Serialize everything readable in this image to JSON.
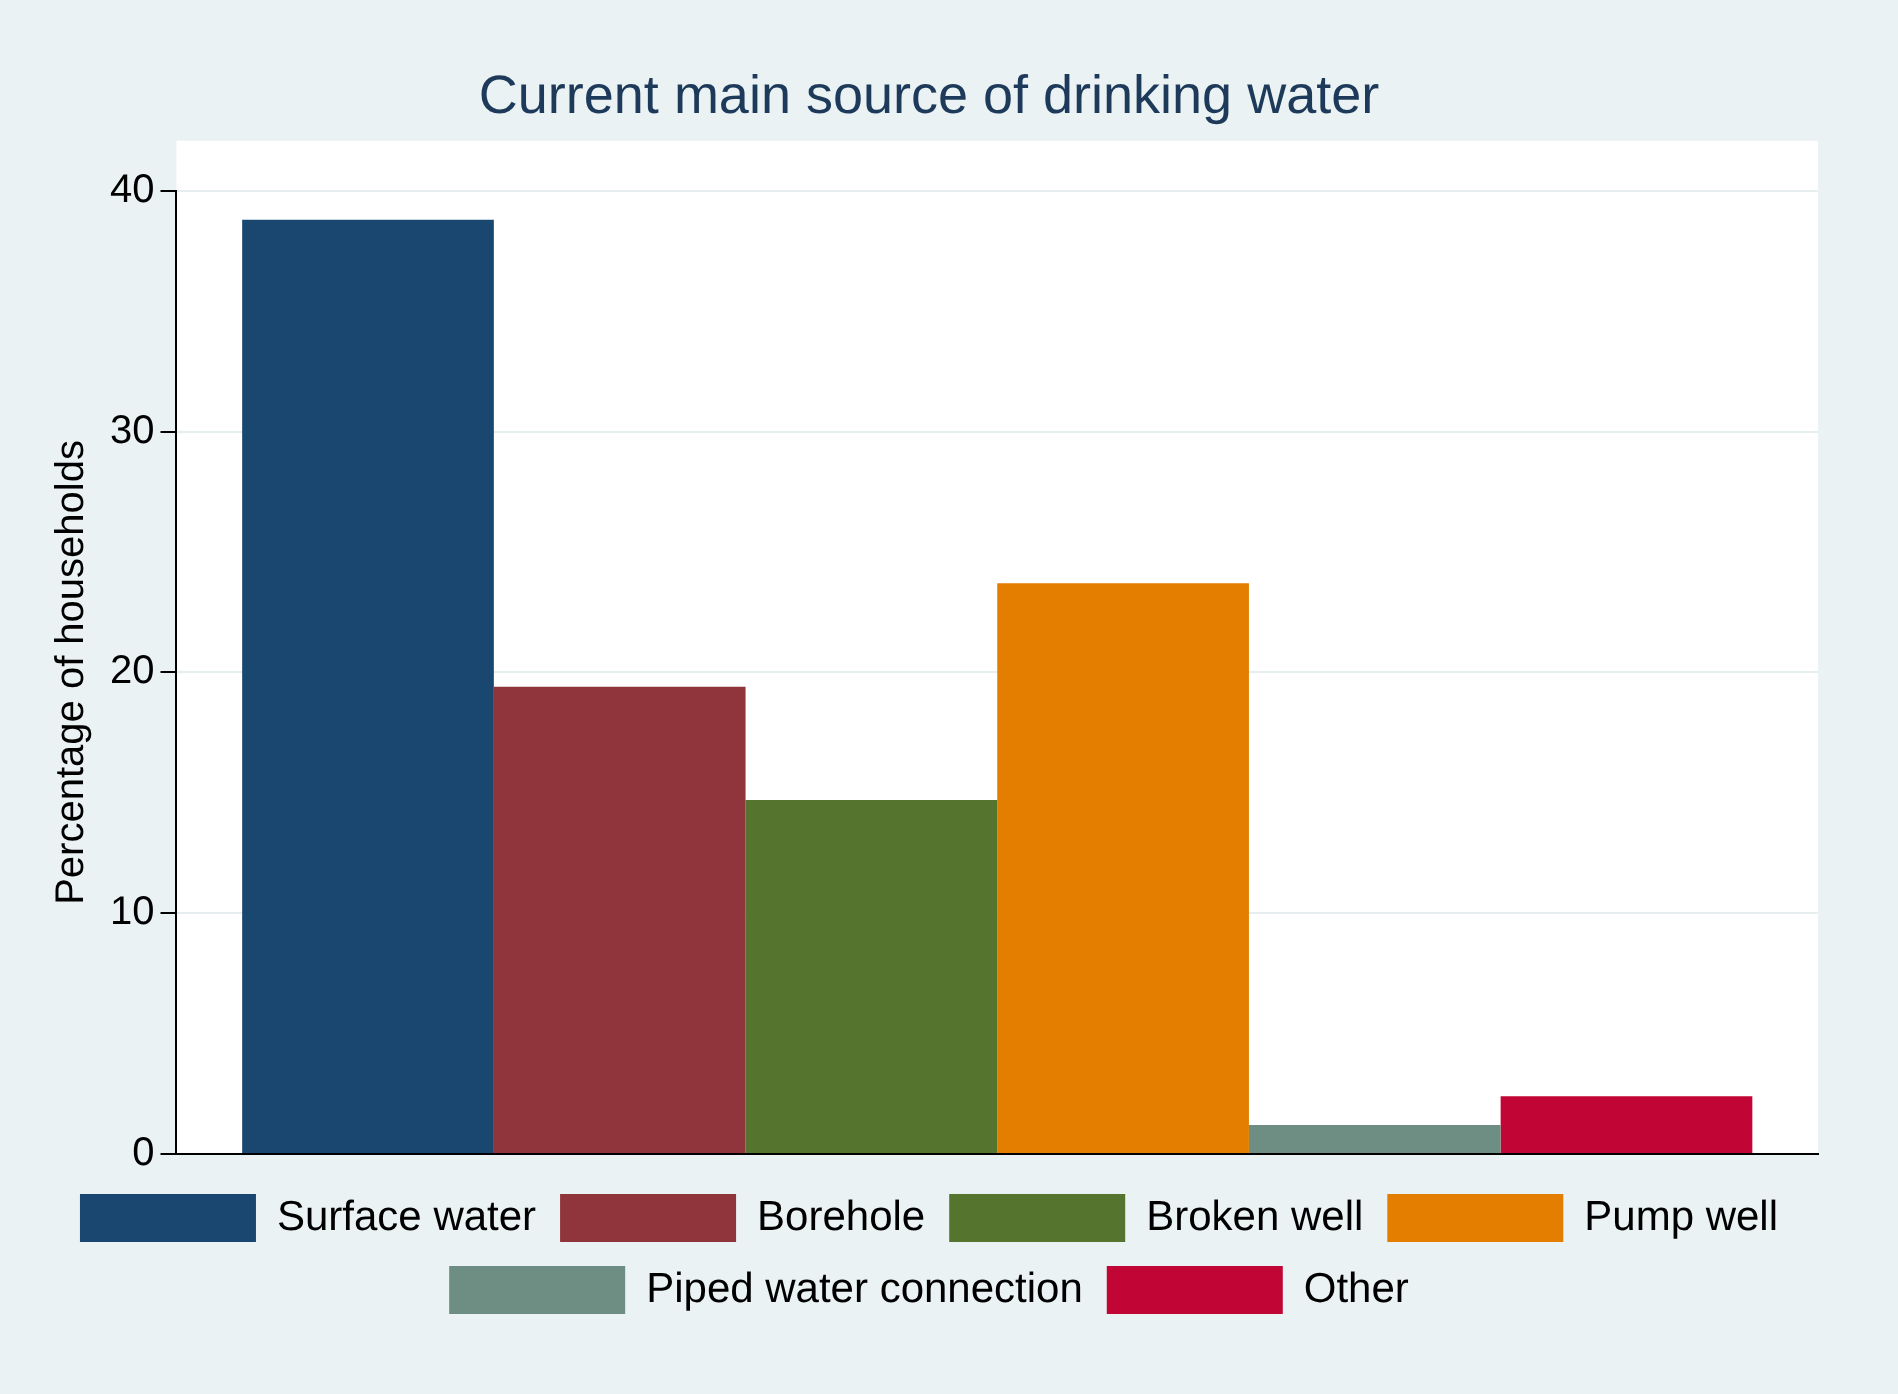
{
  "chart_data": {
    "type": "bar",
    "title": "Current main source of drinking water",
    "ylabel": "Percentage of households",
    "categories": [
      null
    ],
    "series": [
      {
        "name": "Surface water",
        "color": "#1a476f",
        "values": [
          38.8
        ]
      },
      {
        "name": "Borehole",
        "color": "#90353b",
        "values": [
          19.4
        ]
      },
      {
        "name": "Broken well",
        "color": "#55752f",
        "values": [
          14.7
        ]
      },
      {
        "name": "Pump well",
        "color": "#e37e00",
        "values": [
          23.7
        ]
      },
      {
        "name": "Piped water connection",
        "color": "#6e8e84",
        "values": [
          1.2
        ]
      },
      {
        "name": "Other",
        "color": "#c10534",
        "values": [
          2.4
        ]
      }
    ],
    "ylim": [
      0,
      40
    ],
    "yticks": [
      0,
      10,
      20,
      30,
      40
    ],
    "grid": "y",
    "legend": "bottom"
  }
}
